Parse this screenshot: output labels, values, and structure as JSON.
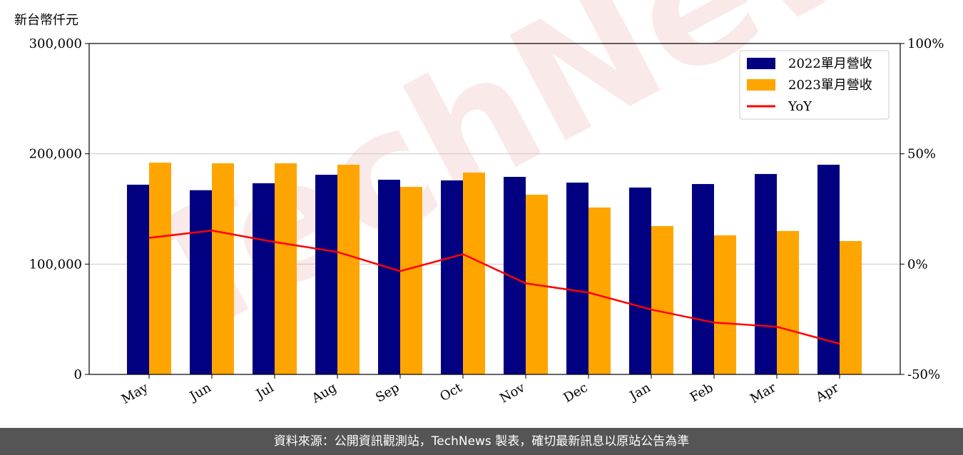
{
  "chart_data": {
    "type": "bar_line",
    "y_label": "新台幣仟元",
    "watermark": "TechNews",
    "categories": [
      "May",
      "Jun",
      "Jul",
      "Aug",
      "Sep",
      "Oct",
      "Nov",
      "Dec",
      "Jan",
      "Feb",
      "Mar",
      "Apr"
    ],
    "series": [
      {
        "name": "2022單月營收",
        "color": "#000080",
        "values": [
          172000,
          167000,
          173300,
          181000,
          176500,
          175900,
          179100,
          173900,
          169400,
          172600,
          181700,
          190100
        ]
      },
      {
        "name": "2023單月營收",
        "color": "#ffa500",
        "values": [
          192000,
          191400,
          191400,
          190100,
          170000,
          183000,
          162900,
          151300,
          134500,
          126100,
          130000,
          120900
        ]
      },
      {
        "name": "YoY",
        "color": "#ff0000",
        "axis": "y2",
        "values": [
          11.9,
          15.2,
          10.0,
          5.5,
          -3.2,
          4.5,
          -8.7,
          -12.9,
          -20.6,
          -26.5,
          -28.4,
          -36.1
        ]
      }
    ],
    "ylim": [
      0,
      300000
    ],
    "yticks": [
      0,
      {
        "value": 100000,
        "label": "100,000"
      },
      {
        "value": 200000,
        "label": "200,000"
      },
      {
        "value": 300000,
        "label": "300,000"
      }
    ],
    "y2lim": [
      -50,
      100
    ],
    "y2ticks": [
      {
        "value": -50,
        "label": "-50%"
      },
      {
        "value": 0,
        "label": "0%"
      },
      {
        "value": 50,
        "label": "50%"
      },
      {
        "value": 100,
        "label": "100%"
      }
    ],
    "grid": true,
    "legend": "upper right"
  },
  "footer": "資料來源：公開資訊觀測站，TechNews 製表，確切最新訊息以原站公告為準"
}
